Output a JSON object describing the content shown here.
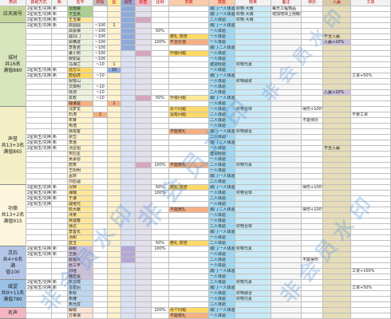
{
  "watermark": {
    "text": "非会员水印"
  },
  "sheet": {
    "headers": [
      "类别",
      "获取方式",
      "新",
      "名字",
      "初始",
      "星",
      "属性",
      "标签",
      "比例",
      "天赋",
      "技能",
      "效果",
      "备注",
      "待办",
      "入赢",
      "工资"
    ],
    "headerBg": [
      "#f2f2f2",
      "#f2f2f2",
      "#f2f2f2",
      "#f2f2f2",
      "#bfbfbf",
      "#ffe699",
      "#8eaadb",
      "#f4b6c2",
      "#f2f2f2",
      "#f8cbad",
      "#f8cbad",
      "#f2f2f2",
      "#f2f2f2",
      "#f2f2f2",
      "#d9c9a3",
      "#f2f2f2"
    ],
    "colBg": [
      "#ffffff",
      "#ffffff",
      "#ffffff",
      "#ffffff",
      "#ffffff",
      "#fff2cc",
      "#d9e1f2",
      "#e4dfec",
      "#ffffff",
      "#ffffff",
      "#9dd8f2",
      "#c9e9f6",
      "#f7f7f7",
      "#ffffff",
      "#e6dcb8",
      "#ffffff"
    ],
    "groups": [
      {
        "label": "应天周号",
        "rows": 3,
        "bg": "#c4d79b",
        "nameBg": "#a9d08e"
      },
      {
        "label": "城衬\n共16名\n满值880",
        "rows": 15,
        "bg": "#d8e4bc",
        "nameBg": "#ebf1de"
      },
      {
        "label": "声誉\n共13+3名\n满值865",
        "rows": 14,
        "bg": "#f2efc6",
        "nameBg": "#fff2cc"
      },
      {
        "label": "功德\n共13+2名\n满值915",
        "rows": 11,
        "bg": "#fdf6dd",
        "nameBg": "#ffe699"
      },
      {
        "label": "灵石\n共4+6名满\n值100",
        "rows": 6,
        "bg": "#b4c6e7",
        "nameBg": "#ccc0da"
      },
      {
        "label": "威望\n共9+11名\n满值780",
        "rows": 5,
        "bg": "#9bc2e6",
        "nameBg": "#bdd7ee"
      },
      {
        "label": "名声",
        "rows": 2,
        "bg": "#f4b6c2",
        "nameBg": "#fce4d6"
      }
    ],
    "rows": [
      {
        "c": [
          "2星铜玉/兑换",
          "新",
          "沈惠娘",
          "",
          "",
          "",
          "",
          "",
          "",
          "城门·一人体验",
          "织物·大赛",
          "每天工程物品",
          "",
          "",
          ""
        ],
        "bg": {
          "3": "#a9d08e",
          "6": "#8eaadb"
        }
      },
      {
        "c": [
          "2星铜玉/兑换",
          "新",
          "卞玉京",
          "",
          "",
          "",
          "",
          "",
          "",
          "城门·一人体验",
          "织物·大赛",
          "增加地块上限概率",
          "",
          "",
          ""
        ],
        "bg": {
          "3": "#a9d08e",
          "6": "#8eaadb"
        }
      },
      {
        "c": [
          "2星铜玉/兑换",
          "新",
          "王玉娘",
          "",
          "",
          "",
          "",
          "",
          "",
          "二人体验",
          "织物·大赛",
          "",
          "",
          "",
          ""
        ],
        "bg": {
          "3": "#ffe699",
          "6": "#8eaadb",
          "7": "#d5a6bd"
        }
      },
      {
        "c": [
          "2星铜玉/兑换",
          "新",
          "陈圆圆",
          "~100",
          "1",
          "",
          "",
          "",
          "",
          "城门·一人体验",
          "",
          "",
          "",
          "",
          ""
        ],
        "bg": {
          "6": "#8eaadb"
        }
      },
      {
        "c": [
          "",
          "",
          "郑妥娘",
          "~100",
          "",
          "",
          "",
          "50%",
          "",
          "一人体验",
          "",
          "",
          "",
          "",
          ""
        ],
        "bg": {
          "6": "#8eaadb"
        }
      },
      {
        "c": [
          "",
          "",
          "寇白门",
          "~100",
          "",
          "",
          "",
          "",
          "赠礼 双倍",
          "一人体验",
          "",
          "",
          "",
          "不全入赢",
          ""
        ],
        "bg": {
          "6": "#8eaadb",
          "9": "#ffd966"
        }
      },
      {
        "c": [
          "",
          "",
          "顾横波",
          "~100",
          "",
          "",
          "",
          "100%",
          "不全价值",
          "一人体验",
          "",
          "",
          "",
          "入赢+20%",
          ""
        ],
        "bg": {
          "6": "#8eaadb",
          "9": "#f4b084",
          "14": "#ccc0da"
        }
      },
      {
        "c": [
          "",
          "",
          "李香君",
          "~100",
          "",
          "",
          "",
          "",
          "",
          "城门·二人体验",
          "",
          "",
          "",
          "",
          ""
        ],
        "bg": {
          "6": "#8eaadb"
        }
      },
      {
        "c": [
          "",
          "",
          "董小宛",
          "~100",
          "",
          "",
          "",
          "",
          "升级问题",
          "一人体验",
          "",
          "",
          "",
          "",
          ""
        ],
        "bg": {
          "7": "#d5a6bd",
          "9": "#ffd966"
        }
      },
      {
        "c": [
          "",
          "",
          "柳如是",
          "~100",
          "",
          "",
          "",
          "",
          "",
          "一人体验",
          "",
          "",
          "",
          "",
          ""
        ]
      },
      {
        "c": [
          "",
          "",
          "马湘兰",
          "~10",
          "1",
          "",
          "",
          "",
          "",
          "建造经验",
          "织物元素",
          "",
          "",
          "",
          ""
        ]
      },
      {
        "c": [
          "2星铜玉/兑换",
          "新",
          "沈万三",
          "",
          "10",
          "",
          "",
          "",
          "",
          "一人体验",
          "",
          "",
          "",
          "",
          ""
        ],
        "bg": {
          "3": "#ffd966",
          "5": "#8eaadb"
        }
      },
      {
        "c": [
          "2星铜玉/兑换",
          "新",
          "唐伯虎",
          "~10",
          "",
          "",
          "",
          "",
          "",
          "城门·一人体验",
          "",
          "",
          "",
          "",
          "工资+50%"
        ],
        "bg": {
          "3": "#ffd966"
        }
      },
      {
        "c": [
          "",
          "",
          "祝枝山",
          "",
          "",
          "",
          "",
          "",
          "",
          "一人体验",
          "织物融资",
          "",
          "",
          "",
          ""
        ]
      },
      {
        "c": [
          "",
          "",
          "文徵明",
          "~10",
          "",
          "",
          "",
          "",
          "",
          "一人体验",
          "",
          "",
          "",
          "",
          ""
        ]
      },
      {
        "c": [
          "",
          "",
          "徐渭",
          "~10",
          "",
          "",
          "",
          "",
          "",
          "二人体验",
          "",
          "",
          "",
          "入赢+20%",
          ""
        ],
        "bg": {
          "14": "#ccc0da"
        }
      },
      {
        "c": [
          "",
          "",
          "袁枚",
          "~10",
          "",
          "",
          "",
          "50%",
          "升级问题",
          "城门·一人体验",
          "",
          "",
          "",
          "",
          ""
        ],
        "bg": {
          "7": "#d5a6bd",
          "9": "#ffe699"
        }
      },
      {
        "c": [
          "",
          "",
          "钱谦益",
          "",
          "2",
          "",
          "",
          "",
          "",
          "一人体验",
          "",
          "",
          "",
          "",
          ""
        ],
        "bg": {
          "3": "#f4b084",
          "5": "#f4b084"
        }
      },
      {
        "c": [
          "",
          "",
          "冯梦龙",
          "",
          "",
          "",
          "",
          "",
          "丹个问题",
          "一人体验",
          "织物合体",
          "",
          "得伤+100%",
          "",
          ""
        ],
        "bg": {
          "9": "#ffd966"
        }
      },
      {
        "c": [
          "",
          "",
          "石涛",
          "2",
          "",
          "",
          "",
          "",
          "没有问题",
          "二人体验",
          "",
          "",
          "",
          "",
          "不要工资"
        ],
        "bg": {
          "4": "#f4b084",
          "9": "#ffd966"
        }
      },
      {
        "c": [
          "",
          "",
          "朱耷",
          "",
          "",
          "",
          "",
          "",
          "",
          "二人体验",
          "",
          "",
          "不能待办",
          "",
          ""
        ]
      },
      {
        "c": [
          "",
          "",
          "陶潜",
          "",
          "",
          "",
          "",
          "",
          "",
          "一人体验",
          "",
          "",
          "",
          "",
          ""
        ]
      },
      {
        "c": [
          "",
          "",
          "徐霞客",
          "",
          "",
          "",
          "",
          "",
          "不能赠礼",
          "城门·一人体验",
          "织物融合",
          "",
          "",
          "",
          ""
        ],
        "bg": {
          "9": "#f4b084"
        }
      },
      {
        "c": [
          "2星铜玉/兑换",
          "新",
          "张岱",
          "",
          "",
          "",
          "",
          "",
          "",
          "二人体验",
          "",
          "",
          "",
          "",
          ""
        ]
      },
      {
        "c": [
          "2星铜玉/兑换",
          "新",
          "李渔",
          "",
          "",
          "",
          "",
          "",
          "",
          "城门·二人体验",
          "",
          "",
          "",
          "",
          ""
        ]
      },
      {
        "c": [
          "2星铜玉/兑换",
          "新",
          "汤显祖",
          "",
          "",
          "",
          "",
          "",
          "",
          "一人体验",
          "",
          "",
          "",
          "不全入赢",
          ""
        ]
      },
      {
        "c": [
          "",
          "",
          "宋应星",
          "",
          "",
          "",
          "",
          "",
          "",
          "建造经验",
          "",
          "",
          "",
          "",
          ""
        ]
      },
      {
        "c": [
          "",
          "",
          "吴承恩",
          "",
          "",
          "",
          "",
          "",
          "",
          "一人体验",
          "",
          "",
          "",
          "",
          ""
        ]
      },
      {
        "c": [
          "",
          "",
          "唐寅",
          "",
          "",
          "",
          "",
          "100%",
          "不能赠礼",
          "二人体验",
          "织物元素",
          "",
          "",
          "",
          ""
        ],
        "bg": {
          "7": "#d5a6bd",
          "9": "#f4b084"
        }
      },
      {
        "c": [
          "",
          "",
          "王阳明",
          "",
          "",
          "",
          "",
          "",
          "",
          "一人体验",
          "",
          "",
          "",
          "",
          ""
        ]
      },
      {
        "c": [
          "",
          "",
          "孟珙",
          "",
          "",
          "",
          "",
          "",
          "",
          "城门·一人体验",
          "",
          "",
          "",
          "",
          ""
        ]
      },
      {
        "c": [
          "",
          "",
          "刘伯温",
          "",
          "",
          "",
          "",
          "",
          "",
          "二人体验",
          "",
          "",
          "",
          "",
          ""
        ]
      },
      {
        "c": [
          "2星铜玉/兑换",
          "新",
          "况钟",
          "",
          "",
          "",
          "",
          "50%",
          "赠礼 双倍",
          "城门·一人体验",
          "",
          "",
          "得伤+100%",
          "",
          ""
        ],
        "bg": {
          "9": "#ffd966"
        }
      },
      {
        "c": [
          "2星铜玉/兑换",
          "新",
          "海瑞",
          "",
          "",
          "",
          "",
          "100%",
          "",
          "一人体验",
          "织物合体",
          "",
          "",
          "",
          ""
        ]
      },
      {
        "c": [
          "2星铜玉/兑换",
          "新",
          "于谦",
          "",
          "",
          "",
          "",
          "",
          "",
          "二人体验",
          "",
          "",
          "",
          "",
          ""
        ]
      },
      {
        "c": [
          "2星铜玉/兑换",
          "",
          "戚继光",
          "",
          "",
          "",
          "",
          "",
          "",
          "一人体验",
          "",
          "",
          "",
          "",
          ""
        ]
      },
      {
        "c": [
          "",
          "",
          "俞大猷",
          "",
          "",
          "",
          "",
          "",
          "不能赠礼",
          "城门·二人体验",
          "",
          "",
          "得伤+100%",
          "",
          ""
        ],
        "bg": {
          "9": "#f4b084"
        }
      },
      {
        "c": [
          "",
          "",
          "沐英",
          "",
          "",
          "",
          "",
          "",
          "",
          "一人体验",
          "",
          "",
          "",
          "",
          ""
        ]
      },
      {
        "c": [
          "",
          "",
          "常遇春",
          "",
          "",
          "",
          "",
          "",
          "",
          "一人体验",
          "",
          "",
          "",
          "",
          ""
        ]
      },
      {
        "c": [
          "",
          "",
          "徐达",
          "",
          "",
          "",
          "",
          "",
          "",
          "二人体验",
          "织物合体",
          "",
          "",
          "",
          ""
        ]
      },
      {
        "c": [
          "",
          "",
          "李善长",
          "",
          "",
          "",
          "",
          "",
          "",
          "城门·一人体验",
          "",
          "",
          "",
          "",
          ""
        ]
      },
      {
        "c": [
          "",
          "",
          "汤和",
          "",
          "",
          "",
          "",
          "",
          "",
          "一人体验",
          "",
          "",
          "",
          "",
          ""
        ]
      },
      {
        "c": [
          "",
          "",
          "蓝玉",
          "",
          "",
          "",
          "",
          "50%",
          "赠礼 双倍",
          "二人体验",
          "",
          "",
          "",
          "",
          ""
        ],
        "bg": {
          "9": "#ffd966"
        }
      },
      {
        "c": [
          "2星铜玉/兑换",
          "新",
          "郑和",
          "",
          "",
          "",
          "",
          "100%",
          "",
          "城门·一人体验",
          "织物元素",
          "",
          "",
          "",
          ""
        ],
        "bg": {
          "6": "#b4a7d6"
        }
      },
      {
        "c": [
          "2星铜玉/兑换",
          "新",
          "王振",
          "",
          "",
          "",
          "",
          "",
          "",
          "一人体验",
          "",
          "",
          "",
          "",
          ""
        ],
        "bg": {
          "6": "#b4a7d6"
        }
      },
      {
        "c": [
          "",
          "",
          "陈祖义",
          "",
          "",
          "",
          "",
          "",
          "",
          "二人体验",
          "",
          "",
          "不能得伤",
          "",
          ""
        ],
        "bg": {
          "6": "#b4a7d6"
        }
      },
      {
        "c": [
          "",
          "",
          "张三丰",
          "",
          "",
          "",
          "",
          "",
          "",
          "一人体验",
          "",
          "",
          "",
          "",
          ""
        ]
      },
      {
        "c": [
          "",
          "",
          "刘瑾",
          "",
          "",
          "",
          "",
          "",
          "",
          "城门·一人体验",
          "",
          "",
          "",
          "",
          "工资+100%"
        ]
      },
      {
        "c": [
          "",
          "",
          "魏忠贤",
          "",
          "",
          "",
          "",
          "",
          "",
          "一人体验",
          "",
          "",
          "",
          "",
          ""
        ]
      },
      {
        "c": [
          "2星铜玉/兑换",
          "新",
          "朱元璋",
          "",
          "",
          "",
          "",
          "",
          "",
          "二人体验",
          "织物元素",
          "",
          "",
          "",
          ""
        ]
      },
      {
        "c": [
          "2星铜玉/兑换",
          "新",
          "马皇后",
          "",
          "",
          "",
          "",
          "",
          "",
          "城门·一人体验",
          "",
          "",
          "",
          "",
          "工资+50%"
        ]
      },
      {
        "c": [
          "",
          "",
          "朱标",
          "",
          "",
          "",
          "",
          "",
          "",
          "一人体验",
          "织物融合",
          "",
          "",
          "",
          ""
        ]
      },
      {
        "c": [
          "",
          "",
          "朱棣",
          "",
          "",
          "",
          "",
          "",
          "",
          "一人体验",
          "织物元素",
          "",
          "",
          "",
          ""
        ]
      },
      {
        "c": [
          "",
          "",
          "朱允炆",
          "",
          "",
          "",
          "",
          "",
          "",
          "二人体验",
          "",
          "",
          "",
          "",
          ""
        ]
      },
      {
        "c": [
          "",
          "",
          "解缙",
          "",
          "",
          "",
          "",
          "100%",
          "丹个问题",
          "城门·一人体验",
          "",
          "",
          "",
          "",
          ""
        ],
        "bg": {
          "9": "#ffd966"
        }
      },
      {
        "c": [
          "",
          "",
          "方孝孺",
          "",
          "",
          "",
          "",
          "",
          "不能赠礼",
          "一人体验",
          "",
          "",
          "",
          "",
          ""
        ],
        "bg": {
          "9": "#f4b084"
        }
      }
    ]
  }
}
